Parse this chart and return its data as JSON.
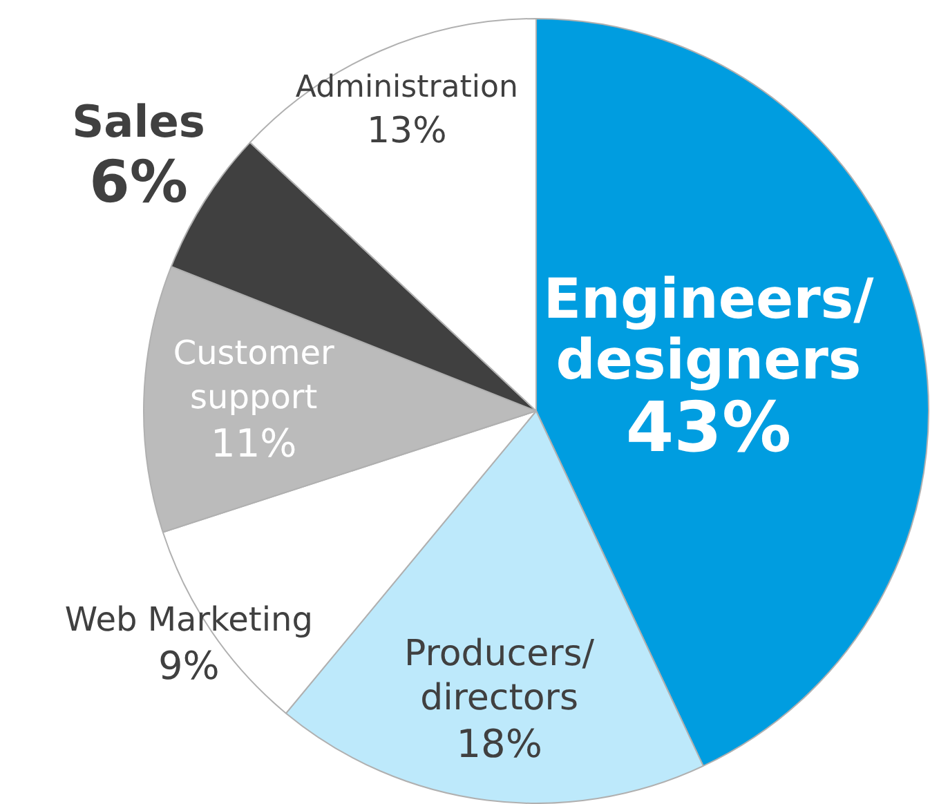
{
  "chart_data": {
    "type": "pie",
    "categories": [
      "Engineers/designers",
      "Producers/directors",
      "Web Marketing",
      "Customer support",
      "Sales",
      "Administration"
    ],
    "values": [
      43,
      18,
      9,
      11,
      6,
      13
    ],
    "colors": [
      "#009de0",
      "#bde9fb",
      "#ffffff",
      "#bbbbbb",
      "#404040",
      "#ffffff"
    ],
    "value_labels": [
      "43%",
      "18%",
      "9%",
      "11%",
      "6%",
      "13%"
    ],
    "legend": false
  }
}
